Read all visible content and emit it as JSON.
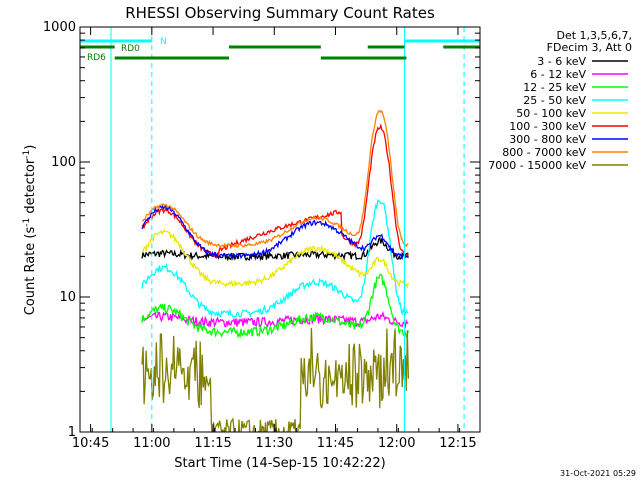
{
  "chart_data": {
    "type": "line",
    "title": "RHESSI Observing Summary Count Rates",
    "xlabel": "Start Time (14-Sep-15 10:42:22)",
    "ylabel": "Count Rate (s",
    "ylabel_sup": "-1",
    "ylabel_mid": " detector",
    "ylabel_end": ")",
    "x_unit": "minutes since 10:42:22",
    "xlim": [
      0,
      98
    ],
    "ylim": [
      1,
      1000
    ],
    "y_scale": "log",
    "x_ticks": [
      {
        "m": 2.6,
        "label": "10:45"
      },
      {
        "m": 17.6,
        "label": "11:00"
      },
      {
        "m": 32.6,
        "label": "11:15"
      },
      {
        "m": 47.6,
        "label": "11:30"
      },
      {
        "m": 62.6,
        "label": "11:45"
      },
      {
        "m": 77.6,
        "label": "12:00"
      },
      {
        "m": 92.6,
        "label": "12:15"
      }
    ],
    "y_ticks": [
      {
        "v": 1,
        "label": "1"
      },
      {
        "v": 10,
        "label": "10"
      },
      {
        "v": 100,
        "label": "100"
      },
      {
        "v": 1000,
        "label": "1000"
      }
    ],
    "legend_header": [
      "Det 1,3,5,6,7,",
      "FDecim 3, Att 0"
    ],
    "series": [
      {
        "name": "3 - 6 keV",
        "color": "#000000",
        "base": 20,
        "pre": 0,
        "bump": 0.05,
        "flare": 0.3,
        "noise": 0.06
      },
      {
        "name": "6 - 12 keV",
        "color": "#ff00ff",
        "base": 6.5,
        "pre": 0.1,
        "bump": 0.1,
        "flare": 0.1,
        "noise": 0.08
      },
      {
        "name": "12 - 25 keV",
        "color": "#00ff00",
        "base": 5.5,
        "pre": 0.7,
        "bump": 0.5,
        "flare": 1.5,
        "noise": 0.08
      },
      {
        "name": "25 - 50 keV",
        "color": "#00ffff",
        "base": 7.5,
        "pre": 1,
        "bump": 1.2,
        "flare": 6,
        "noise": 0.06
      },
      {
        "name": "50 - 100 keV",
        "color": "#e8e800",
        "base": 12.5,
        "pre": 1,
        "bump": 1.4,
        "flare": 0.5,
        "noise": 0.05
      },
      {
        "name": "100 - 300 keV",
        "color": "#ff0000",
        "base": 20,
        "pre": 0.9,
        "bump": 1.2,
        "flare": 8,
        "noise": 0.04
      },
      {
        "name": "300 - 800 keV",
        "color": "#0000ff",
        "base": 20,
        "pre": 0.9,
        "bump": 1.3,
        "flare": 0.4,
        "noise": 0.04
      },
      {
        "name": "800 - 7000 keV",
        "color": "#ff8000",
        "base": 24,
        "pre": 0.8,
        "bump": 1.0,
        "flare": 9,
        "noise": 0.03
      },
      {
        "name": "7000 - 15000 keV",
        "color": "#808000",
        "base": 2.5,
        "pre": 0.5,
        "bump": 0,
        "flare": 0,
        "noise": 0.25
      }
    ],
    "observing_flags": [
      {
        "label": "N",
        "color": "#00ffff",
        "segments": [
          [
            0,
            17.6
          ],
          [
            79.5,
            98
          ]
        ]
      },
      {
        "label": "RD0",
        "color": "#008000",
        "segments": [
          [
            0,
            8.5
          ],
          [
            36.5,
            59
          ],
          [
            70.5,
            79.5
          ],
          [
            89,
            98
          ]
        ]
      },
      {
        "label": "RD6",
        "color": "#008000",
        "segments": [
          [
            8.5,
            36.5
          ],
          [
            59,
            80
          ]
        ]
      }
    ],
    "vlines": [
      {
        "m": 7.6,
        "color": "#00ffff",
        "dash": false
      },
      {
        "m": 17.6,
        "color": "#00ffff",
        "dash": true
      },
      {
        "m": 79.5,
        "color": "#00ffff",
        "dash": false
      },
      {
        "m": 94.1,
        "color": "#00ffff",
        "dash": true
      }
    ],
    "timestamp": "31-Oct-2021 05:29"
  }
}
